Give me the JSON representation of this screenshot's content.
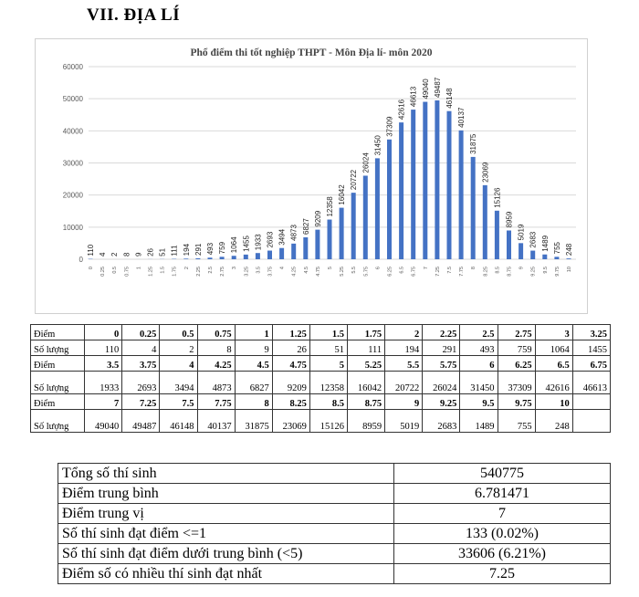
{
  "heading": "VII.   ĐỊA LÍ",
  "chart_data": {
    "type": "bar",
    "title": "Phổ điểm thi tốt nghiệp THPT - Môn Địa lí- môn 2020",
    "categories": [
      "0",
      "0.25",
      "0.5",
      "0.75",
      "1",
      "1.25",
      "1.5",
      "1.75",
      "2",
      "2.25",
      "2.5",
      "2.75",
      "3",
      "3.25",
      "3.5",
      "3.75",
      "4",
      "4.25",
      "4.5",
      "4.75",
      "5",
      "5.25",
      "5.5",
      "5.75",
      "6",
      "6.25",
      "6.5",
      "6.75",
      "7",
      "7.25",
      "7.5",
      "7.75",
      "8",
      "8.25",
      "8.5",
      "8.75",
      "9",
      "9.25",
      "9.5",
      "9.75",
      "10"
    ],
    "values": [
      110,
      4,
      2,
      8,
      9,
      26,
      51,
      111,
      194,
      291,
      493,
      759,
      1064,
      1455,
      1933,
      2693,
      3494,
      4873,
      6827,
      9209,
      12358,
      16042,
      20722,
      26024,
      31450,
      37309,
      42616,
      46613,
      49040,
      49487,
      46148,
      40137,
      31875,
      23069,
      15126,
      8959,
      5019,
      2683,
      1489,
      755,
      248
    ],
    "ylim": [
      0,
      60000
    ],
    "yticks": [
      "0",
      "10000",
      "20000",
      "30000",
      "40000",
      "50000",
      "60000"
    ],
    "grid": true,
    "color": "#4472c4"
  },
  "dist_table": {
    "point_label": "Điểm",
    "count_label": "Số lượng",
    "rows": [
      {
        "points": [
          "0",
          "0.25",
          "0.5",
          "0.75",
          "1",
          "1.25",
          "1.5",
          "1.75",
          "2",
          "2.25",
          "2.5",
          "2.75",
          "3",
          "3.25"
        ],
        "counts": [
          "110",
          "4",
          "2",
          "8",
          "9",
          "26",
          "51",
          "111",
          "194",
          "291",
          "493",
          "759",
          "1064",
          "1455"
        ]
      },
      {
        "points": [
          "3.5",
          "3.75",
          "4",
          "4.25",
          "4.5",
          "4.75",
          "5",
          "5.25",
          "5.5",
          "5.75",
          "6",
          "6.25",
          "6.5",
          "6.75"
        ],
        "counts": [
          "1933",
          "2693",
          "3494",
          "4873",
          "6827",
          "9209",
          "12358",
          "16042",
          "20722",
          "26024",
          "31450",
          "37309",
          "42616",
          "46613"
        ]
      },
      {
        "points": [
          "7",
          "7.25",
          "7.5",
          "7.75",
          "8",
          "8.25",
          "8.5",
          "8.75",
          "9",
          "9.25",
          "9.5",
          "9.75",
          "10",
          ""
        ],
        "counts": [
          "49040",
          "49487",
          "46148",
          "40137",
          "31875",
          "23069",
          "15126",
          "8959",
          "5019",
          "2683",
          "1489",
          "755",
          "248",
          ""
        ]
      }
    ]
  },
  "stats": [
    {
      "label": "Tổng số thí sinh",
      "value": "540775"
    },
    {
      "label": "Điểm trung bình",
      "value": "6.781471"
    },
    {
      "label": "Điểm trung vị",
      "value": "7"
    },
    {
      "label": "Số thí sinh đạt điểm <=1",
      "value": "133 (0.02%)"
    },
    {
      "label": "Số thí sinh đạt điểm dưới trung bình (<5)",
      "value": "33606 (6.21%)"
    },
    {
      "label": "Điểm số có nhiều thí sinh đạt nhất",
      "value": "7.25"
    }
  ]
}
